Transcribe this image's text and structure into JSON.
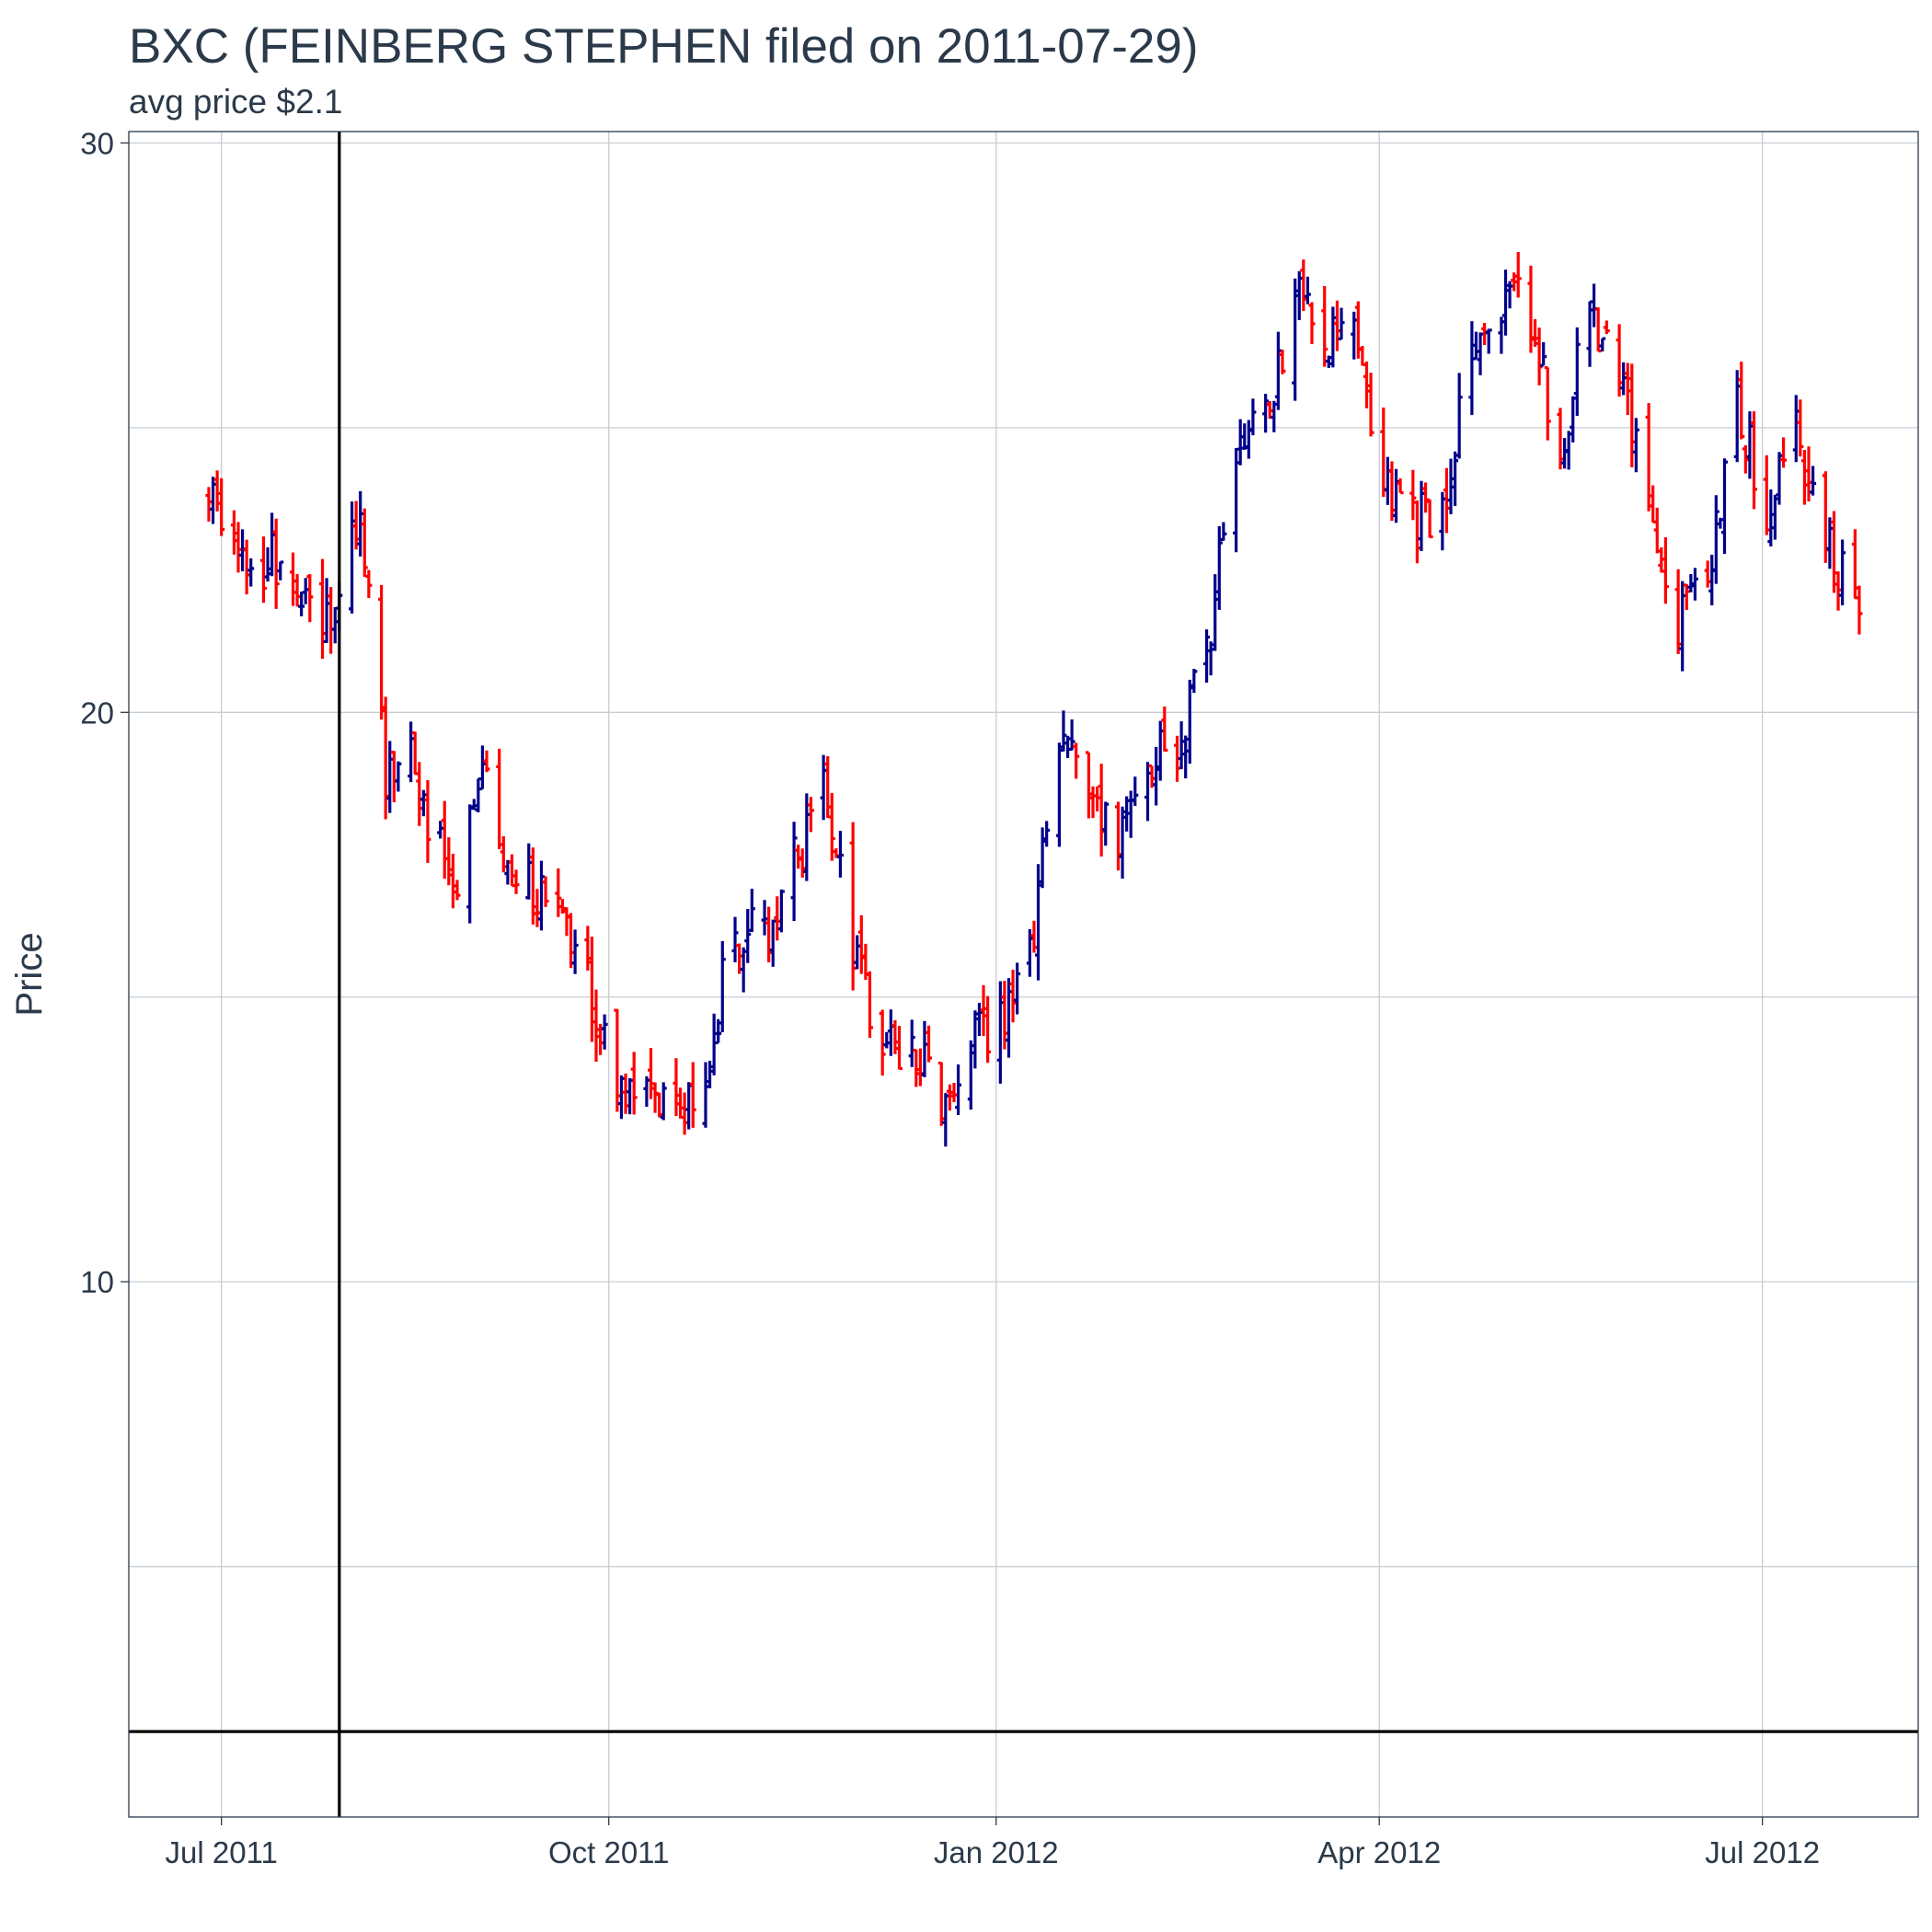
{
  "chart_data": {
    "type": "bar",
    "subtype": "ohlc",
    "title": "BXC (FEINBERG STEPHEN filed on 2011-07-29)",
    "subtitle": "avg price $2.1",
    "xlabel": "",
    "ylabel": "Price",
    "x_ticks": [
      {
        "label": "Jul 2011",
        "date": "2011-07-01"
      },
      {
        "label": "Oct 2011",
        "date": "2011-10-01"
      },
      {
        "label": "Jan 2012",
        "date": "2012-01-01"
      },
      {
        "label": "Apr 2012",
        "date": "2012-04-01"
      },
      {
        "label": "Jul 2012",
        "date": "2012-07-01"
      }
    ],
    "y_ticks": [
      10,
      20,
      30
    ],
    "ylim": [
      0.6,
      30.2
    ],
    "xlim": [
      "2011-06-09",
      "2012-08-07"
    ],
    "grid": true,
    "legend": "none",
    "colors": {
      "up": "#00008b",
      "down": "#ff0000",
      "reference": "#000000",
      "grid": "#c8cdd3"
    },
    "reference_lines": {
      "vertical_date": "2011-07-29",
      "horizontal_price": 2.1
    },
    "anchors": [
      [
        "2011-06-28",
        24.0
      ],
      [
        "2011-07-06",
        22.6
      ],
      [
        "2011-07-13",
        22.7
      ],
      [
        "2011-07-21",
        21.7
      ],
      [
        "2011-07-29",
        22.0
      ],
      [
        "2011-08-03",
        23.5
      ],
      [
        "2011-08-09",
        19.0
      ],
      [
        "2011-08-15",
        19.6
      ],
      [
        "2011-08-19",
        18.0
      ],
      [
        "2011-08-26",
        17.1
      ],
      [
        "2011-09-01",
        19.2
      ],
      [
        "2011-09-07",
        17.5
      ],
      [
        "2011-09-14",
        16.8
      ],
      [
        "2011-09-21",
        16.3
      ],
      [
        "2011-09-27",
        15.0
      ],
      [
        "2011-10-03",
        13.2
      ],
      [
        "2011-10-10",
        13.4
      ],
      [
        "2011-10-17",
        13.0
      ],
      [
        "2011-10-24",
        13.8
      ],
      [
        "2011-10-31",
        16.2
      ],
      [
        "2011-11-07",
        16.0
      ],
      [
        "2011-11-14",
        17.3
      ],
      [
        "2011-11-21",
        18.5
      ],
      [
        "2011-11-28",
        16.0
      ],
      [
        "2011-12-05",
        14.0
      ],
      [
        "2011-12-12",
        14.3
      ],
      [
        "2011-12-19",
        12.9
      ],
      [
        "2011-12-26",
        14.3
      ],
      [
        "2012-01-03",
        14.6
      ],
      [
        "2012-01-09",
        15.8
      ],
      [
        "2012-01-16",
        19.7
      ],
      [
        "2012-01-23",
        18.8
      ],
      [
        "2012-01-30",
        17.8
      ],
      [
        "2012-02-06",
        19.3
      ],
      [
        "2012-02-13",
        19.5
      ],
      [
        "2012-02-20",
        21.0
      ],
      [
        "2012-02-27",
        24.5
      ],
      [
        "2012-03-05",
        25.3
      ],
      [
        "2012-03-12",
        27.3
      ],
      [
        "2012-03-19",
        26.6
      ],
      [
        "2012-03-26",
        27.1
      ],
      [
        "2012-04-02",
        24.0
      ],
      [
        "2012-04-09",
        23.3
      ],
      [
        "2012-04-16",
        23.6
      ],
      [
        "2012-04-23",
        26.5
      ],
      [
        "2012-04-30",
        27.3
      ],
      [
        "2012-05-07",
        27.0
      ],
      [
        "2012-05-14",
        24.5
      ],
      [
        "2012-05-21",
        27.1
      ],
      [
        "2012-05-28",
        25.7
      ],
      [
        "2012-06-04",
        24.0
      ],
      [
        "2012-06-11",
        21.5
      ],
      [
        "2012-06-18",
        22.5
      ],
      [
        "2012-06-25",
        25.5
      ],
      [
        "2012-07-02",
        23.5
      ],
      [
        "2012-07-09",
        24.8
      ],
      [
        "2012-07-16",
        23.0
      ],
      [
        "2012-07-24",
        21.8
      ]
    ]
  }
}
